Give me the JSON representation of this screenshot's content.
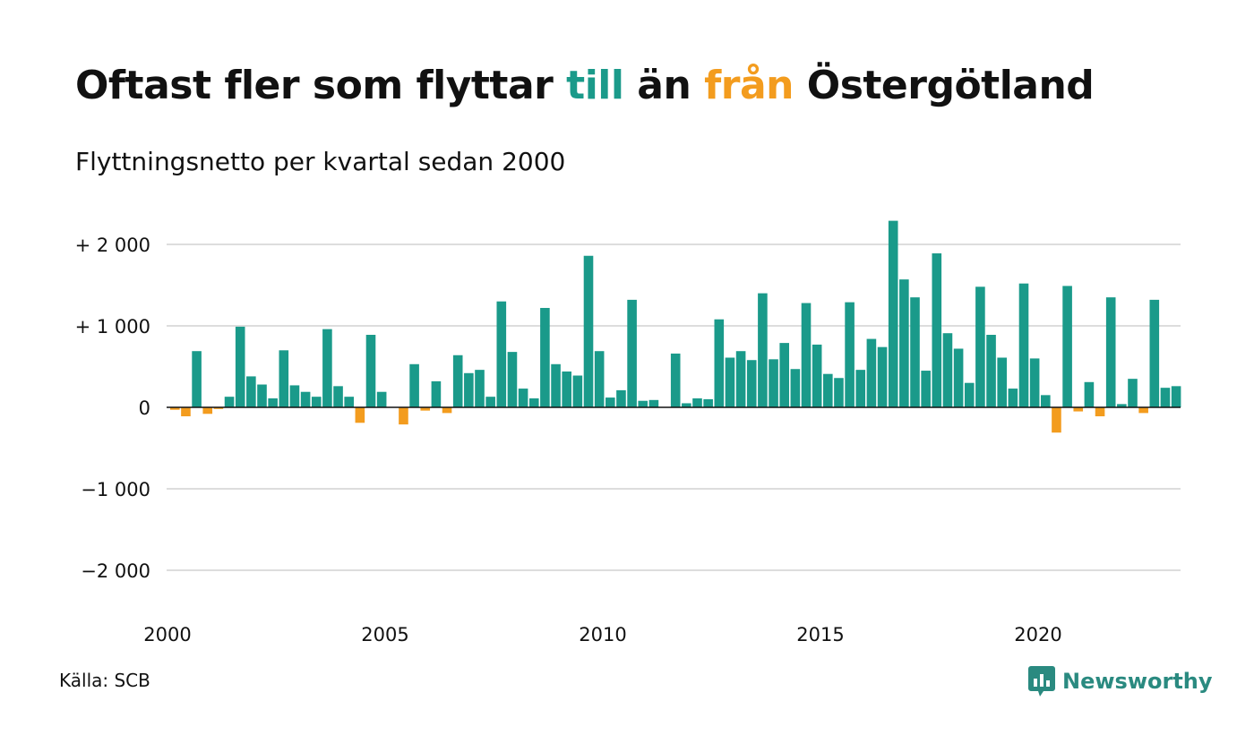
{
  "header": {
    "title_parts": [
      "Oftast fler som flyttar ",
      "till",
      " än ",
      "från",
      " Östergötland"
    ],
    "subtitle": "Flyttningsnetto per kvartal sedan 2000"
  },
  "footer": {
    "source": "Källa: SCB",
    "logo_text": "Newsworthy",
    "logo_icon": "bar-chart-speech-bubble-icon"
  },
  "colors": {
    "positive": "#1a9a8a",
    "negative": "#f39c1e",
    "grid": "#dddddd",
    "logo": "#2a8a80"
  },
  "chart_data": {
    "type": "bar",
    "title": "Oftast fler som flyttar till än från Östergötland",
    "subtitle": "Flyttningsnetto per kvartal sedan 2000",
    "x_start": "2000-Q1",
    "x_tick_labels": [
      "2000",
      "2005",
      "2010",
      "2015",
      "2020"
    ],
    "y_tick_values": [
      2000,
      1000,
      0,
      -1000,
      -2000
    ],
    "y_tick_labels": [
      "+ 2 000",
      "+ 1 000",
      "0",
      "−1 000",
      "−2 000"
    ],
    "ylim": [
      -2000,
      2000
    ],
    "grid": true,
    "values": [
      -30,
      -110,
      690,
      -80,
      -20,
      130,
      990,
      380,
      280,
      110,
      700,
      270,
      190,
      130,
      960,
      260,
      130,
      -190,
      890,
      190,
      0,
      -210,
      530,
      -40,
      320,
      -70,
      640,
      420,
      460,
      130,
      1300,
      680,
      230,
      110,
      1220,
      530,
      440,
      390,
      1860,
      690,
      120,
      210,
      1320,
      80,
      90,
      0,
      660,
      50,
      110,
      100,
      1080,
      610,
      690,
      580,
      1400,
      590,
      790,
      470,
      1280,
      770,
      410,
      360,
      1290,
      460,
      840,
      740,
      2290,
      1570,
      1350,
      450,
      1890,
      910,
      720,
      300,
      1480,
      890,
      610,
      230,
      1520,
      600,
      150,
      -310,
      1490,
      -50,
      310,
      -110,
      1350,
      40,
      350,
      -70,
      1320,
      240,
      260
    ]
  }
}
